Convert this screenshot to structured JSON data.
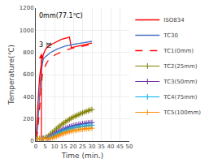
{
  "chart_data": {
    "type": "line",
    "title": "",
    "xlabel": "Time (min.)",
    "ylabel": "Temperature(℃)",
    "xlim": [
      0,
      50
    ],
    "ylim": [
      0,
      1200
    ],
    "xticks": [
      0,
      5,
      10,
      15,
      20,
      25,
      30,
      35,
      40,
      45,
      50
    ],
    "yticks": [
      0,
      200,
      400,
      600,
      800,
      1000,
      1200
    ],
    "grid": true,
    "legend": "right",
    "annotations": [
      {
        "text": "3 분",
        "x": 1.0,
        "y": 820
      },
      {
        "text": "0mm(77.1℃)",
        "x": 1.0,
        "y": 1080
      }
    ],
    "arrow": {
      "x": 3,
      "y_from": 30,
      "y_to": 790,
      "color": "#ff0000"
    },
    "series": [
      {
        "name": "ISO834",
        "color": "#ff0000",
        "line_style": "solid",
        "x": [
          0,
          0.5,
          1,
          1.5,
          2,
          2.5,
          3,
          4,
          5,
          6,
          7,
          8,
          9,
          10,
          11,
          12,
          13,
          14,
          15,
          16,
          17,
          18,
          19,
          20,
          21,
          22,
          23,
          24,
          25,
          26,
          27,
          28,
          29,
          30
        ],
        "values": [
          20,
          180,
          350,
          470,
          570,
          640,
          700,
          780,
          820,
          845,
          860,
          870,
          878,
          885,
          895,
          905,
          912,
          920,
          925,
          930,
          934,
          938,
          843,
          848,
          852,
          855,
          858,
          862,
          866,
          870,
          874,
          877,
          880,
          884
        ]
      },
      {
        "name": "TC30",
        "color": "#4472c4",
        "line_style": "solid",
        "x": [
          0,
          0.5,
          1,
          1.5,
          2,
          2.5,
          3,
          3.5,
          4,
          5,
          6,
          7,
          8,
          9,
          10,
          11,
          12,
          13,
          14,
          15,
          16,
          17,
          18,
          19,
          20,
          21,
          22,
          23,
          24,
          25,
          26,
          27,
          28,
          29,
          30
        ],
        "values": [
          20,
          50,
          120,
          280,
          430,
          550,
          640,
          700,
          740,
          760,
          775,
          790,
          800,
          810,
          820,
          828,
          835,
          840,
          848,
          855,
          858,
          862,
          866,
          870,
          873,
          876,
          878,
          880,
          883,
          887,
          890,
          892,
          895,
          897,
          900
        ]
      },
      {
        "name": "TC1(0mm)",
        "color": "#ff0000",
        "line_style": "dashed",
        "x": [
          0,
          0.5,
          1,
          1.5,
          2,
          2.5,
          3,
          3.5,
          4,
          5,
          6,
          7,
          8,
          9,
          10,
          11,
          12,
          13,
          14,
          15,
          16,
          17,
          18,
          19,
          20,
          21,
          22,
          23,
          24,
          25,
          26,
          27,
          28,
          29,
          30
        ],
        "values": [
          20,
          40,
          90,
          200,
          340,
          450,
          540,
          600,
          640,
          680,
          710,
          735,
          750,
          762,
          775,
          783,
          792,
          798,
          808,
          815,
          820,
          826,
          830,
          836,
          840,
          843,
          847,
          851,
          855,
          857,
          860,
          862,
          866,
          868,
          871
        ]
      },
      {
        "name": "TC2(25mm)",
        "color": "#808000",
        "line_style": "solid",
        "marker": "plus",
        "x": [
          0,
          1,
          2,
          3,
          4,
          5,
          6,
          7,
          8,
          9,
          10,
          11,
          12,
          13,
          14,
          15,
          16,
          17,
          18,
          19,
          20,
          21,
          22,
          23,
          24,
          25,
          26,
          27,
          28,
          29,
          30
        ],
        "values": [
          20,
          20,
          20,
          22,
          25,
          30,
          38,
          50,
          65,
          80,
          96,
          110,
          125,
          138,
          152,
          163,
          175,
          186,
          196,
          207,
          216,
          224,
          232,
          240,
          248,
          255,
          262,
          268,
          274,
          280,
          285
        ]
      },
      {
        "name": "TC3(50mm)",
        "color": "#7030a0",
        "line_style": "solid",
        "marker": "plus",
        "x": [
          0,
          1,
          2,
          3,
          4,
          5,
          6,
          7,
          8,
          9,
          10,
          11,
          12,
          13,
          14,
          15,
          16,
          17,
          18,
          19,
          20,
          21,
          22,
          23,
          24,
          25,
          26,
          27,
          28,
          29,
          30
        ],
        "values": [
          20,
          20,
          20,
          20,
          21,
          23,
          27,
          33,
          42,
          52,
          63,
          74,
          84,
          93,
          101,
          109,
          116,
          122,
          128,
          133,
          138,
          142,
          146,
          150,
          153,
          156,
          158,
          161,
          163,
          165,
          167
        ]
      },
      {
        "name": "TC4(75mm)",
        "color": "#00b0f0",
        "line_style": "solid",
        "marker": "plus",
        "x": [
          0,
          1,
          2,
          3,
          4,
          5,
          6,
          7,
          8,
          9,
          10,
          11,
          12,
          13,
          14,
          15,
          16,
          17,
          18,
          19,
          20,
          21,
          22,
          23,
          24,
          25,
          26,
          27,
          28,
          29,
          30
        ],
        "values": [
          20,
          20,
          20,
          20,
          20,
          21,
          23,
          27,
          32,
          40,
          49,
          58,
          67,
          76,
          84,
          91,
          97,
          103,
          108,
          113,
          117,
          121,
          124,
          127,
          130,
          132,
          135,
          137,
          139,
          141,
          143
        ]
      },
      {
        "name": "TC5(100mm)",
        "color": "#ff8c00",
        "line_style": "solid",
        "marker": "plus",
        "x": [
          0,
          1,
          2,
          3,
          4,
          5,
          6,
          7,
          8,
          9,
          10,
          11,
          12,
          13,
          14,
          15,
          16,
          17,
          18,
          19,
          20,
          21,
          22,
          23,
          24,
          25,
          26,
          27,
          28,
          29,
          30
        ],
        "values": [
          20,
          20,
          20,
          20,
          20,
          20,
          21,
          23,
          26,
          30,
          36,
          43,
          50,
          57,
          64,
          70,
          76,
          81,
          86,
          90,
          94,
          97,
          100,
          103,
          106,
          108,
          110,
          112,
          113,
          115,
          116
        ]
      }
    ]
  }
}
